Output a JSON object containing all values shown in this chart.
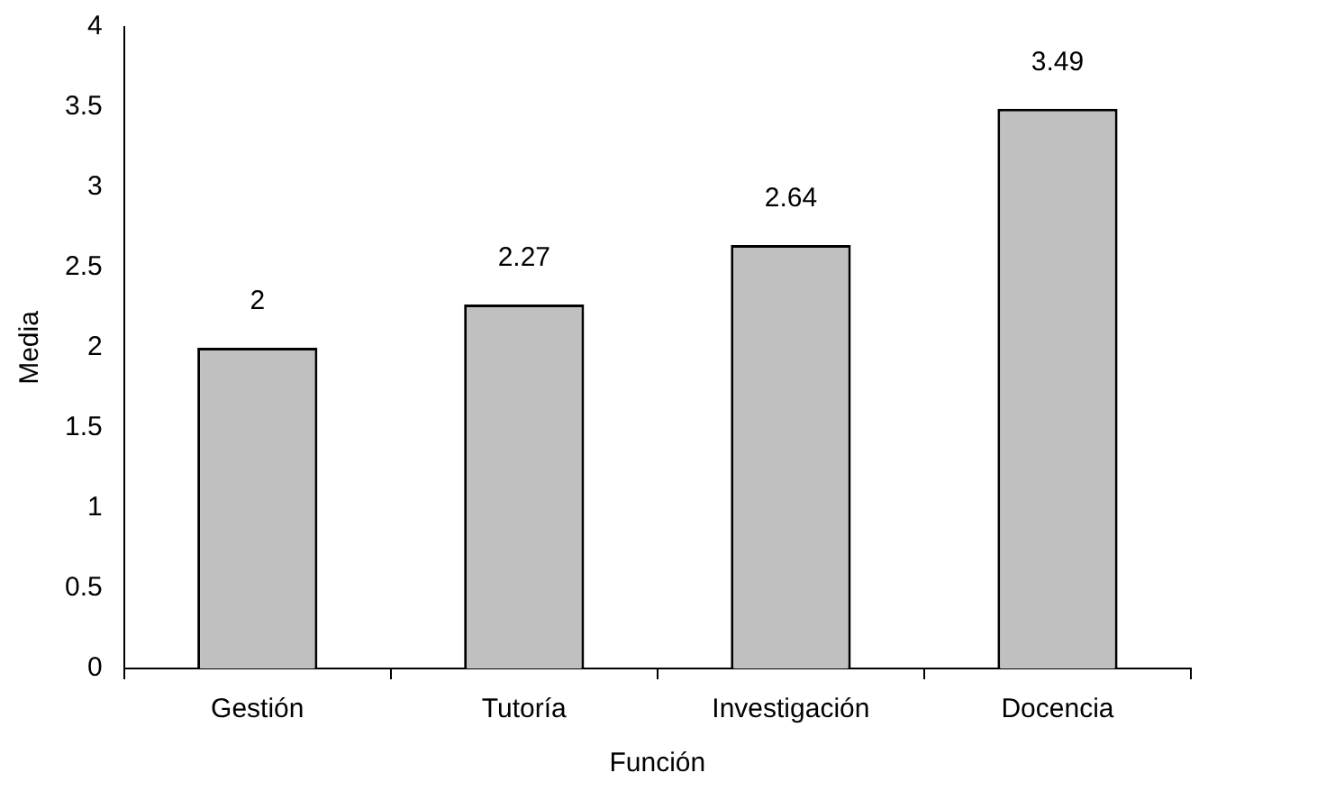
{
  "chart_data": {
    "type": "bar",
    "xlabel": "Función",
    "ylabel": "Media",
    "categories": [
      "Gestión",
      "Tutoría",
      "Investigación",
      "Docencia"
    ],
    "values": [
      2,
      2.27,
      2.64,
      3.49
    ],
    "color": "#c0c0c0",
    "ylim": [
      0,
      4
    ],
    "yticks": [
      0,
      0.5,
      1,
      1.5,
      2,
      2.5,
      3,
      3.5,
      4
    ],
    "grid": false,
    "legend": false,
    "data_labels": true
  }
}
